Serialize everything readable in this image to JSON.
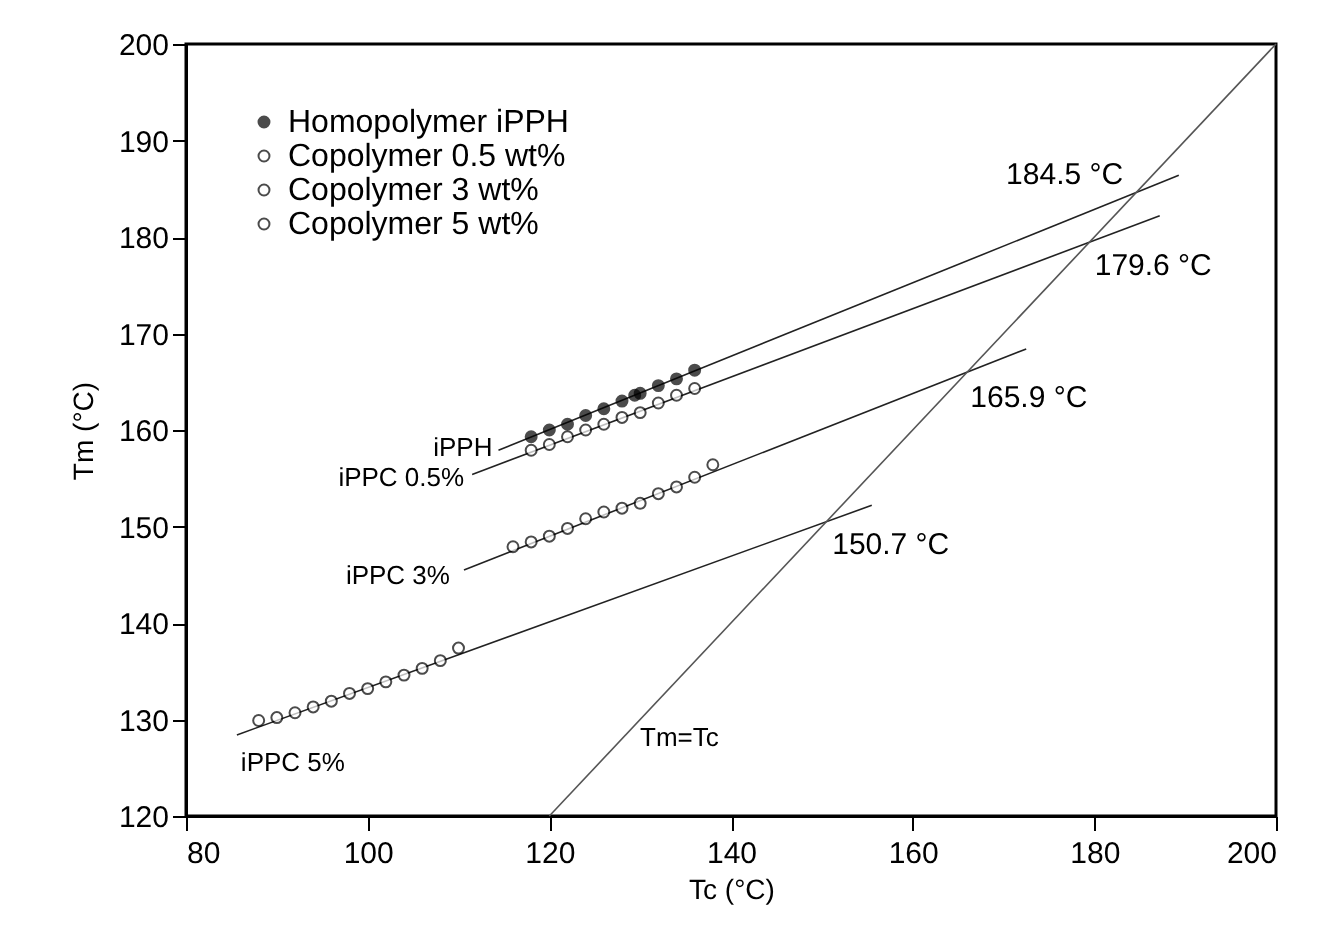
{
  "chart_data": {
    "type": "scatter",
    "xlabel": "Tc (°C)",
    "ylabel": "Tm (°C)",
    "xlim": [
      80,
      200
    ],
    "ylim": [
      120,
      200
    ],
    "xticks": [
      80,
      100,
      120,
      140,
      160,
      180,
      200
    ],
    "yticks": [
      120,
      130,
      140,
      150,
      160,
      170,
      180,
      190,
      200
    ],
    "grid": false,
    "legend": "top left",
    "series": [
      {
        "name": "Homopolymer  iPPH",
        "color": "#000000",
        "marker": "circle",
        "x": [
          118,
          120,
          122,
          124,
          126,
          128,
          129.4,
          130,
          132,
          134,
          136
        ],
        "values": [
          159.3,
          160.0,
          160.6,
          161.5,
          162.2,
          163.0,
          163.6,
          163.8,
          164.6,
          165.3,
          166.2
        ]
      },
      {
        "name": "Copolymer  0.5  wt%",
        "color": "#ffffff",
        "marker": "circle",
        "x": [
          118,
          120,
          122,
          124,
          126,
          128,
          130,
          132,
          134,
          136
        ],
        "values": [
          157.9,
          158.5,
          159.3,
          160.0,
          160.6,
          161.3,
          161.8,
          162.8,
          163.6,
          164.3
        ]
      },
      {
        "name": "Copolymer  3  wt%",
        "color": "#ffffff",
        "marker": "circle",
        "x": [
          116,
          118,
          120,
          122,
          124,
          126,
          128,
          130,
          132,
          134,
          136,
          138
        ],
        "values": [
          147.9,
          148.4,
          149.0,
          149.8,
          150.8,
          151.5,
          151.9,
          152.4,
          153.4,
          154.1,
          155.1,
          156.4
        ]
      },
      {
        "name": "Copolymer  5  wt%",
        "color": "#ffffff",
        "marker": "circle",
        "x": [
          88,
          90,
          92,
          94,
          96,
          98,
          100,
          102,
          104,
          106,
          108,
          110
        ],
        "values": [
          129.9,
          130.2,
          130.7,
          131.3,
          131.9,
          132.7,
          133.2,
          133.9,
          134.6,
          135.3,
          136.1,
          137.4
        ]
      },
      {
        "type": "line",
        "color": "#222222",
        "x": [
          114.4,
          189.3
        ],
        "values": [
          157.9,
          186.4
        ]
      },
      {
        "type": "line",
        "color": "#222222",
        "x": [
          111.5,
          187.2
        ],
        "values": [
          155.4,
          182.2
        ]
      },
      {
        "type": "line",
        "color": "#222222",
        "x": [
          110.6,
          172.5
        ],
        "values": [
          145.5,
          168.4
        ]
      },
      {
        "type": "line",
        "color": "#222222",
        "x": [
          85.6,
          155.5
        ],
        "values": [
          128.4,
          152.2
        ]
      },
      {
        "type": "line",
        "color": "#555555",
        "x": [
          120,
          200
        ],
        "values": [
          120,
          200
        ]
      }
    ],
    "annotations": [
      {
        "text": "184.5  °C",
        "x": 184.5,
        "y": 184.5
      },
      {
        "text": "179.6  °C",
        "x": 179.6,
        "y": 179.6
      },
      {
        "text": "165.9  °C",
        "x": 165.9,
        "y": 165.9
      },
      {
        "text": "150.7  °C",
        "x": 150.7,
        "y": 150.7
      },
      {
        "text": "iPPH",
        "x": 114.4,
        "y": 157.9
      },
      {
        "text": "iPPC  0.5%",
        "x": 111.5,
        "y": 155.4
      },
      {
        "text": "iPPC  3%",
        "x": 110.6,
        "y": 145.5
      },
      {
        "text": "iPPC  5%",
        "x": 85.6,
        "y": 128.4
      },
      "Tm=Tc"
    ]
  }
}
